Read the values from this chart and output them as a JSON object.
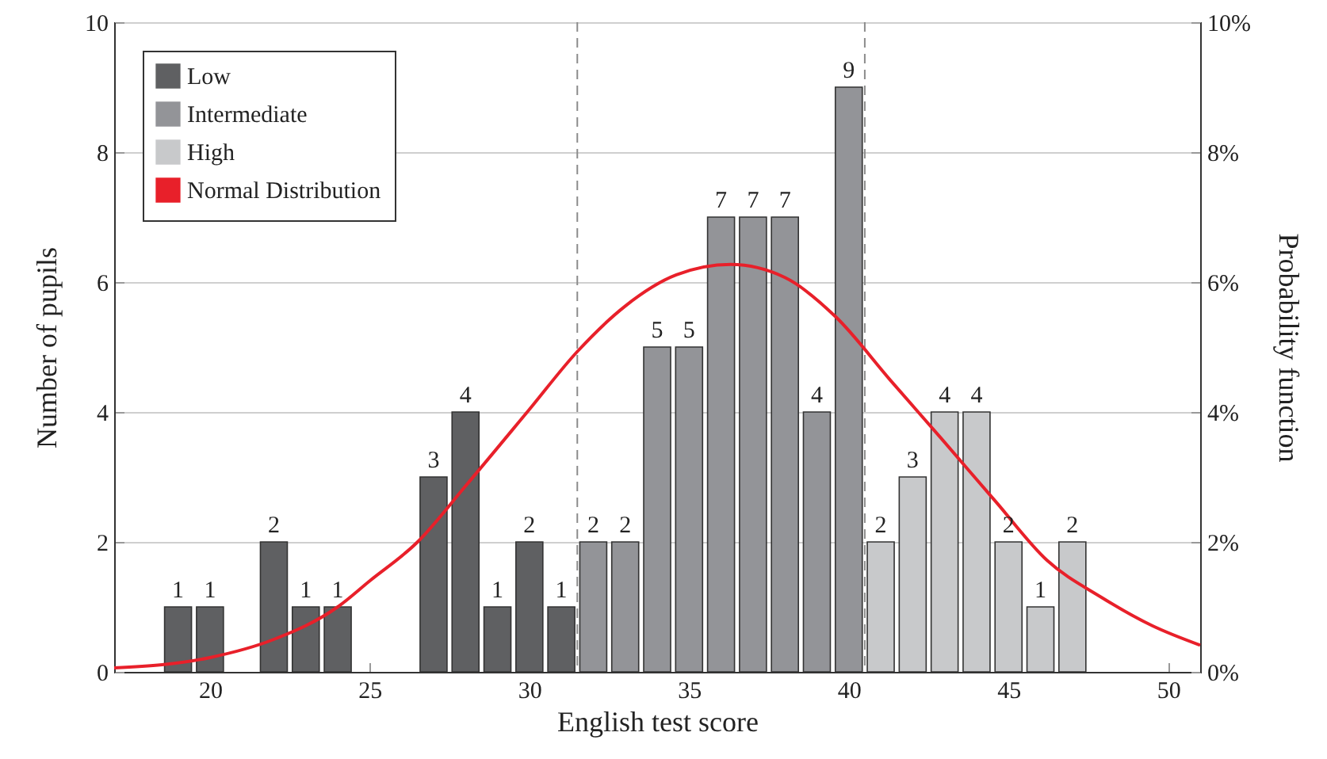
{
  "chart_data": {
    "type": "bar",
    "xlabel": "English test score",
    "ylabel": "Number of pupils",
    "y2label": "Probability function",
    "xlim": [
      17,
      51
    ],
    "xticks": [
      20,
      25,
      30,
      35,
      40,
      45,
      50
    ],
    "ylim": [
      0,
      10
    ],
    "yticks": [
      0,
      2,
      4,
      6,
      8,
      10
    ],
    "y2lim": [
      0,
      10
    ],
    "y2ticks": [
      {
        "value": 0,
        "label": "0%"
      },
      {
        "value": 2,
        "label": "2%"
      },
      {
        "value": 4,
        "label": "4%"
      },
      {
        "value": 6,
        "label": "6%"
      },
      {
        "value": 8,
        "label": "8%"
      },
      {
        "value": 10,
        "label": "10%"
      }
    ],
    "grid": "y",
    "legend": "top left",
    "series": [
      {
        "name": "Low",
        "type": "bar",
        "color": "#5f6062",
        "x": [
          19,
          20,
          22,
          23,
          24,
          27,
          28,
          29,
          30,
          31
        ],
        "values": [
          1,
          1,
          2,
          1,
          1,
          3,
          4,
          1,
          2,
          1
        ],
        "value_labels": [
          "1",
          "1",
          "2",
          "1",
          "1",
          "3",
          "4",
          "1",
          "2",
          "1"
        ]
      },
      {
        "name": "Intermediate",
        "type": "bar",
        "color": "#939498",
        "x": [
          32,
          33,
          34,
          35,
          36,
          37,
          38,
          39,
          40
        ],
        "values": [
          2,
          2,
          5,
          5,
          7,
          7,
          7,
          4,
          9
        ],
        "value_labels": [
          "2",
          "2",
          "5",
          "5",
          "7",
          "7",
          "7",
          "4",
          "9"
        ]
      },
      {
        "name": "High",
        "type": "bar",
        "color": "#c8c9cb",
        "x": [
          41,
          42,
          43,
          44,
          45,
          46,
          47
        ],
        "values": [
          2,
          3,
          4,
          4,
          2,
          1,
          2
        ],
        "value_labels": [
          "2",
          "3",
          "4",
          "4",
          "2",
          "1",
          "2"
        ]
      },
      {
        "name": "Normal Distribution",
        "type": "line",
        "axis": "y2",
        "color": "#e8202a",
        "x": [
          17,
          20,
          22,
          24,
          25,
          26.5,
          28,
          30,
          31.5,
          33,
          34.6,
          36.3,
          38,
          39.6,
          41.3,
          42.9,
          44.6,
          46.2,
          47.9,
          49.5,
          51
        ],
        "values": [
          0.06,
          0.22,
          0.5,
          1.0,
          1.4,
          2.0,
          2.86,
          4.04,
          4.93,
          5.63,
          6.11,
          6.27,
          6.07,
          5.46,
          4.49,
          3.59,
          2.62,
          1.72,
          1.15,
          0.71,
          0.41
        ]
      }
    ],
    "ref_lines": [
      {
        "axis": "x",
        "value": 31.5,
        "color": "#8c8c8c",
        "line_style": "dashed"
      },
      {
        "axis": "x",
        "value": 40.5,
        "color": "#8c8c8c",
        "line_style": "dashed"
      }
    ]
  }
}
